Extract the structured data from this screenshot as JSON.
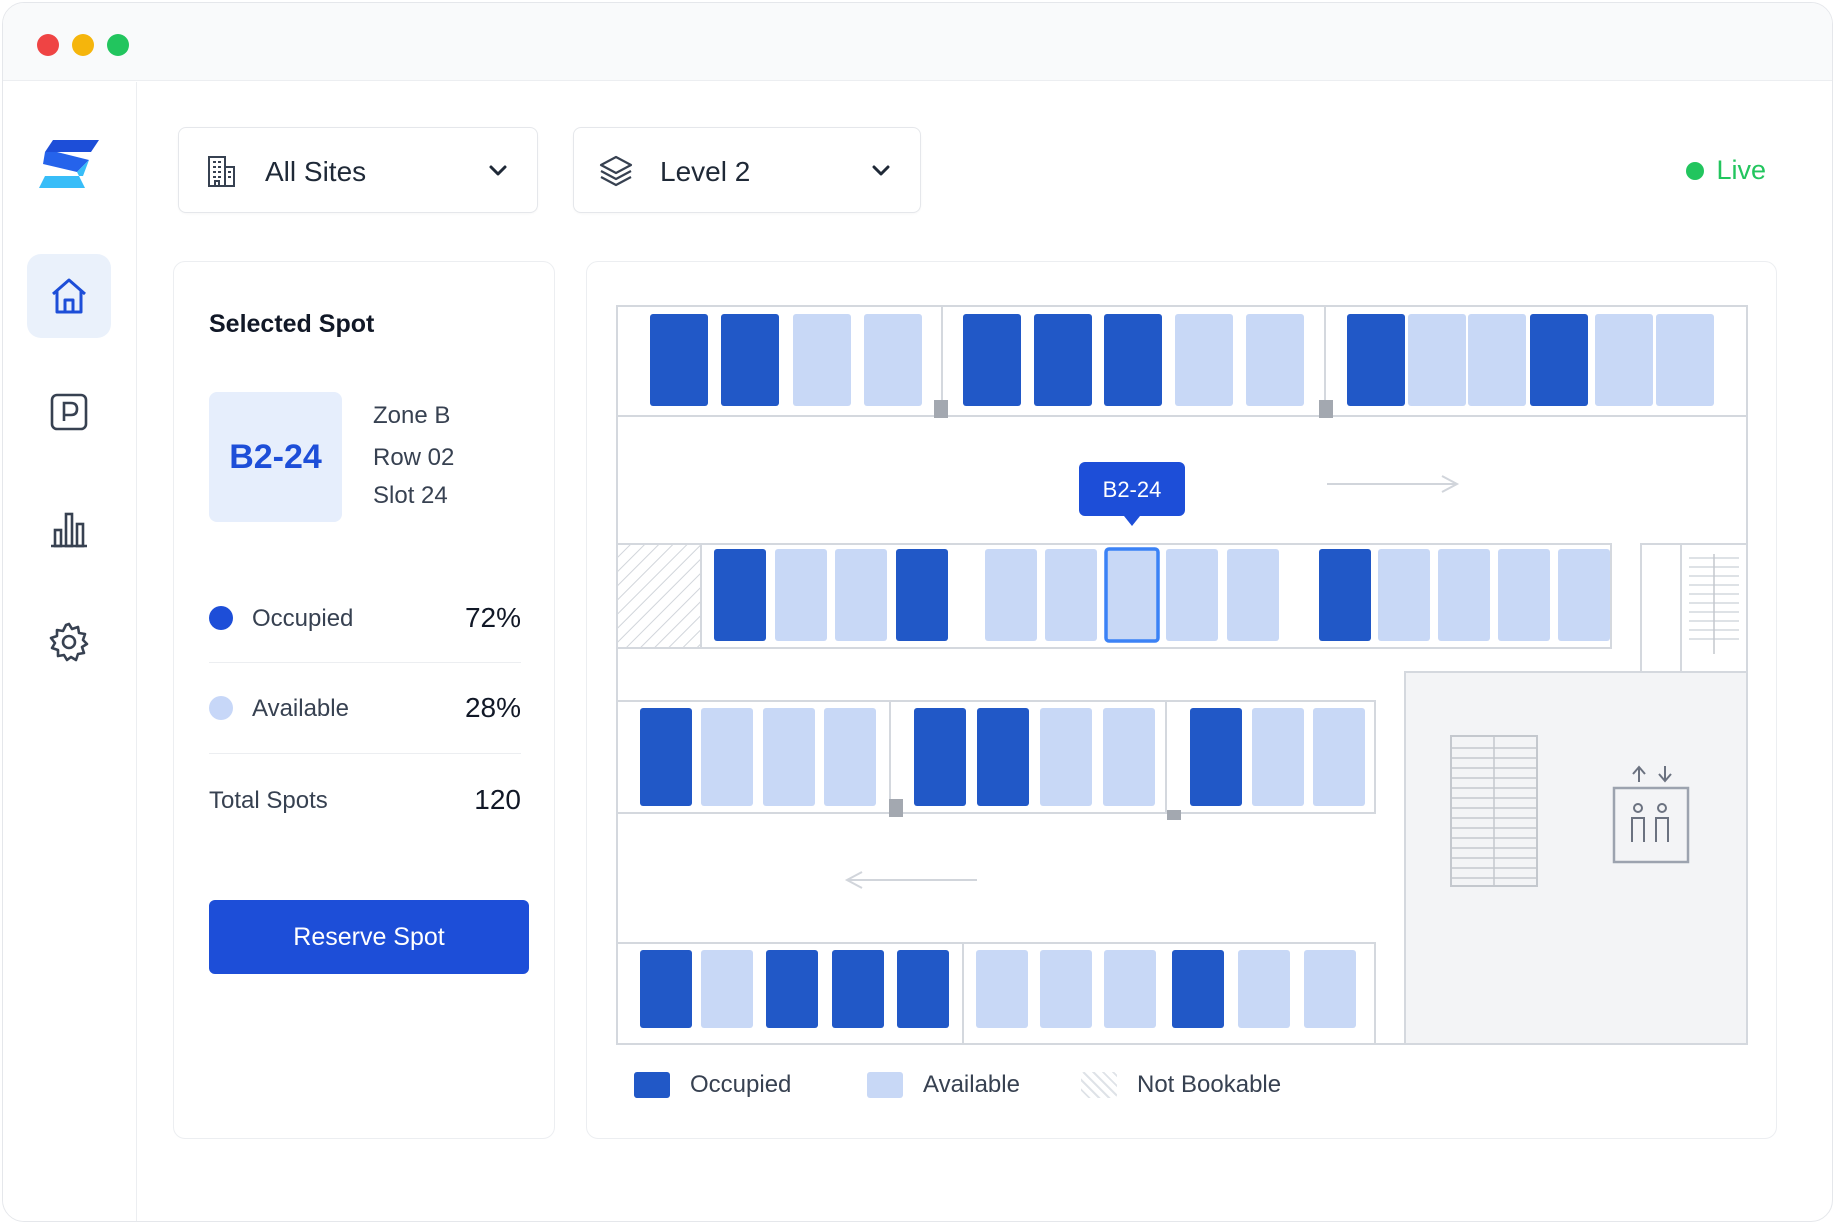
{
  "window": {
    "controls": [
      "close",
      "minimize",
      "maximize"
    ]
  },
  "sidebar": {
    "logo_icon": "brand-logo",
    "items": [
      {
        "name": "home",
        "icon": "home-icon",
        "active": true
      },
      {
        "name": "parking",
        "icon": "parking-icon",
        "active": false
      },
      {
        "name": "analytics",
        "icon": "bar-chart-icon",
        "active": false
      },
      {
        "name": "settings",
        "icon": "gear-icon",
        "active": false
      }
    ]
  },
  "toolbar": {
    "site_select": {
      "value": "All Sites",
      "icon": "building-icon"
    },
    "level_select": {
      "value": "Level 2",
      "icon": "layers-icon"
    },
    "status": {
      "label": "Live",
      "color": "#22c55e"
    }
  },
  "selected_spot": {
    "heading": "Selected Spot",
    "spot_id": "B2-24",
    "zone": "Zone B",
    "row": "Row 02",
    "slot": "Slot 24",
    "stats": [
      {
        "label": "Occupied",
        "value": "72%",
        "color": "#1d4ed8"
      },
      {
        "label": "Available",
        "value": "28%",
        "color": "#c7d7f8"
      }
    ],
    "total_label": "Total Spots",
    "total_value": "120",
    "reserve_label": "Reserve Spot"
  },
  "map": {
    "tooltip": "B2-24",
    "colors": {
      "occupied": "#2158c7",
      "available": "#c8d8f6",
      "selected_border": "#3b82f6"
    },
    "rows": [
      [
        "occupied",
        "occupied",
        "available",
        "available",
        "occupied",
        "occupied",
        "occupied",
        "available",
        "available",
        "occupied",
        "available",
        "available",
        "occupied",
        "available",
        "available"
      ],
      [
        "occupied",
        "available",
        "available",
        "occupied",
        "available",
        "available",
        "selected",
        "available",
        "available",
        "occupied",
        "available",
        "available",
        "available",
        "available"
      ],
      [
        "occupied",
        "available",
        "available",
        "available",
        "occupied",
        "occupied",
        "available",
        "available",
        "occupied",
        "available",
        "available"
      ],
      [
        "occupied",
        "available",
        "occupied",
        "occupied",
        "occupied",
        "available",
        "available",
        "available",
        "occupied",
        "available",
        "available"
      ]
    ],
    "facility_icons": [
      "stairs-icon",
      "elevator-icon"
    ],
    "legend": [
      {
        "label": "Occupied",
        "key": "occupied"
      },
      {
        "label": "Available",
        "key": "available"
      },
      {
        "label": "Not Bookable",
        "key": "not-bookable"
      }
    ]
  }
}
